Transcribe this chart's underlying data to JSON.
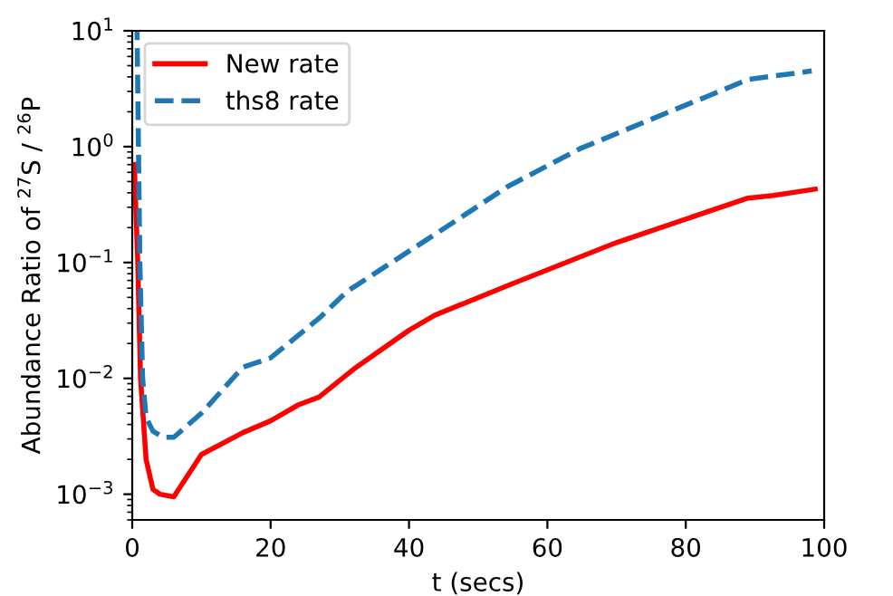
{
  "chart_data": {
    "type": "line",
    "xlabel": "t (secs)",
    "ylabel": "Abundance Ratio of $^{27}$S / $^{26}$P",
    "log": "y",
    "xlim": [
      0,
      100
    ],
    "ylim": [
      0.0006,
      10
    ],
    "xticks": [
      0,
      20,
      40,
      60,
      80,
      100
    ],
    "yticks": [
      {
        "value": 0.001,
        "label": "10$^{−3}$"
      },
      {
        "value": 0.01,
        "label": "10$^{−2}$"
      },
      {
        "value": 0.1,
        "label": "10$^{−1}$"
      },
      {
        "value": 1,
        "label": "10$^{0}$"
      },
      {
        "value": 10,
        "label": "10$^{1}$"
      }
    ],
    "grid": false,
    "legend": "top left",
    "series": [
      {
        "name": "New rate",
        "color": "#ff0000",
        "line_style": "solid",
        "x": [
          0.3,
          0.8,
          1.2,
          2,
          3,
          4,
          6,
          10,
          16,
          20,
          24,
          27,
          32,
          40,
          43.7,
          54.2,
          69.9,
          89,
          92.7,
          98.7
        ],
        "values": [
          0.7,
          0.1,
          0.01,
          0.002,
          0.0011,
          0.001,
          0.00095,
          0.0022,
          0.0034,
          0.0043,
          0.0059,
          0.0069,
          0.012,
          0.026,
          0.035,
          0.063,
          0.148,
          0.36,
          0.38,
          0.43
        ]
      },
      {
        "name": "ths8 rate",
        "color": "#1f77b4",
        "line_style": "dashed",
        "x": [
          0.7,
          1.1,
          1.5,
          2,
          3,
          4.5,
          6,
          10,
          16,
          20,
          27,
          31,
          46.3,
          54.2,
          64.7,
          78.5,
          83,
          89,
          98.2
        ],
        "values": [
          10,
          0.1,
          0.01,
          0.0046,
          0.0035,
          0.0031,
          0.0031,
          0.005,
          0.0125,
          0.015,
          0.033,
          0.056,
          0.22,
          0.45,
          0.96,
          2.1,
          2.7,
          3.8,
          4.5
        ]
      }
    ]
  }
}
